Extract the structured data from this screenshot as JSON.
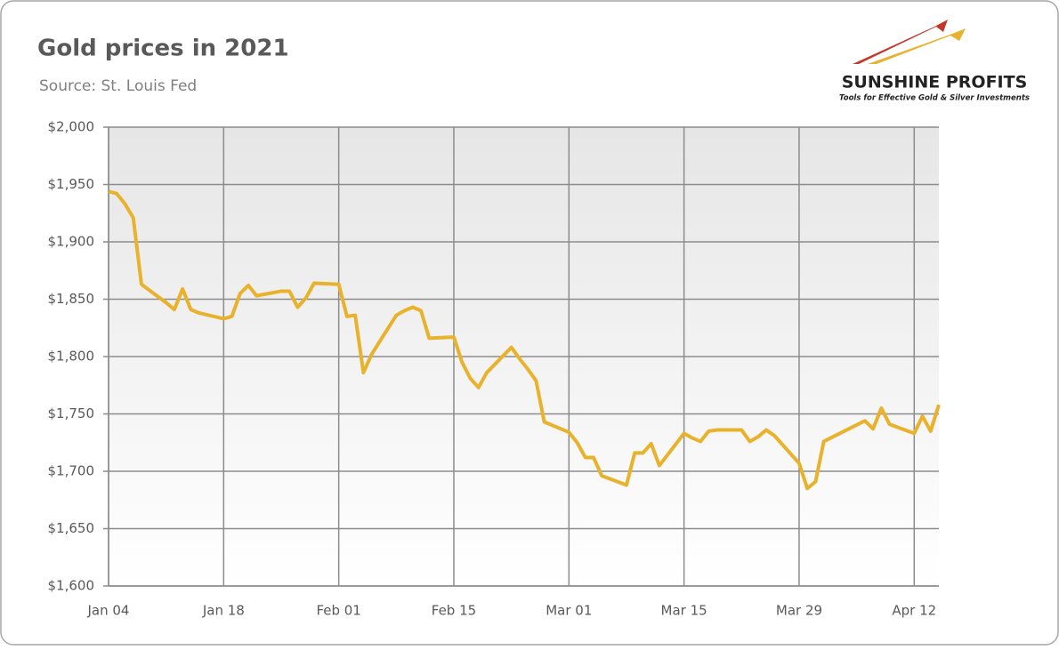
{
  "chart_data": {
    "type": "line",
    "title": "Gold prices in 2021",
    "subtitle": "Source: St. Louis Fed",
    "logo": {
      "name": "SUNSHINE PROFITS",
      "tagline": "Tools for Effective Gold & Silver Investments"
    },
    "x": [
      "Jan 04",
      "Jan 05",
      "Jan 06",
      "Jan 07",
      "Jan 08",
      "Jan 11",
      "Jan 12",
      "Jan 13",
      "Jan 14",
      "Jan 15",
      "Jan 18",
      "Jan 19",
      "Jan 20",
      "Jan 21",
      "Jan 22",
      "Jan 25",
      "Jan 26",
      "Jan 27",
      "Jan 28",
      "Jan 29",
      "Feb 01",
      "Feb 02",
      "Feb 03",
      "Feb 04",
      "Feb 05",
      "Feb 08",
      "Feb 09",
      "Feb 10",
      "Feb 11",
      "Feb 12",
      "Feb 15",
      "Feb 16",
      "Feb 17",
      "Feb 18",
      "Feb 19",
      "Feb 22",
      "Feb 23",
      "Feb 24",
      "Feb 25",
      "Feb 26",
      "Mar 01",
      "Mar 02",
      "Mar 03",
      "Mar 04",
      "Mar 05",
      "Mar 08",
      "Mar 09",
      "Mar 10",
      "Mar 11",
      "Mar 12",
      "Mar 15",
      "Mar 16",
      "Mar 17",
      "Mar 18",
      "Mar 19",
      "Mar 22",
      "Mar 23",
      "Mar 24",
      "Mar 25",
      "Mar 26",
      "Mar 29",
      "Mar 30",
      "Mar 31",
      "Apr 01",
      "Apr 06",
      "Apr 07",
      "Apr 08",
      "Apr 09",
      "Apr 12",
      "Apr 13",
      "Apr 14",
      "Apr 15"
    ],
    "series": [
      {
        "name": "Gold price",
        "color": "#e8b22c",
        "values": [
          1944,
          1942,
          1933,
          1921,
          1863,
          1847,
          1841,
          1859,
          1841,
          1838,
          1833,
          1835,
          1855,
          1862,
          1853,
          1857,
          1857,
          1843,
          1851,
          1864,
          1863,
          1835,
          1836,
          1786,
          1802,
          1836,
          1840,
          1843,
          1840,
          1816,
          1817,
          1795,
          1781,
          1773,
          1786,
          1808,
          1798,
          1789,
          1779,
          1743,
          1734,
          1725,
          1712,
          1712,
          1696,
          1688,
          1716,
          1716,
          1724,
          1705,
          1733,
          1729,
          1726,
          1735,
          1736,
          1736,
          1726,
          1730,
          1736,
          1731,
          1707,
          1685,
          1691,
          1726,
          1744,
          1737,
          1755,
          1741,
          1733,
          1748,
          1735,
          1758
        ]
      }
    ],
    "xlim": [
      "Jan 04",
      "Apr 15"
    ],
    "xticks": [
      "Jan 04",
      "Jan 18",
      "Feb 01",
      "Feb 15",
      "Mar 01",
      "Mar 15",
      "Mar 29",
      "Apr 12"
    ],
    "ylim": [
      1600,
      2000
    ],
    "yticks": [
      {
        "value": 1600,
        "label": "$1,600"
      },
      {
        "value": 1650,
        "label": "$1,650"
      },
      {
        "value": 1700,
        "label": "$1,700"
      },
      {
        "value": 1750,
        "label": "$1,750"
      },
      {
        "value": 1800,
        "label": "$1,800"
      },
      {
        "value": 1850,
        "label": "$1,850"
      },
      {
        "value": 1900,
        "label": "$1,900"
      },
      {
        "value": 1950,
        "label": "$1,950"
      },
      {
        "value": 2000,
        "label": "$2,000"
      }
    ],
    "grid": true
  }
}
